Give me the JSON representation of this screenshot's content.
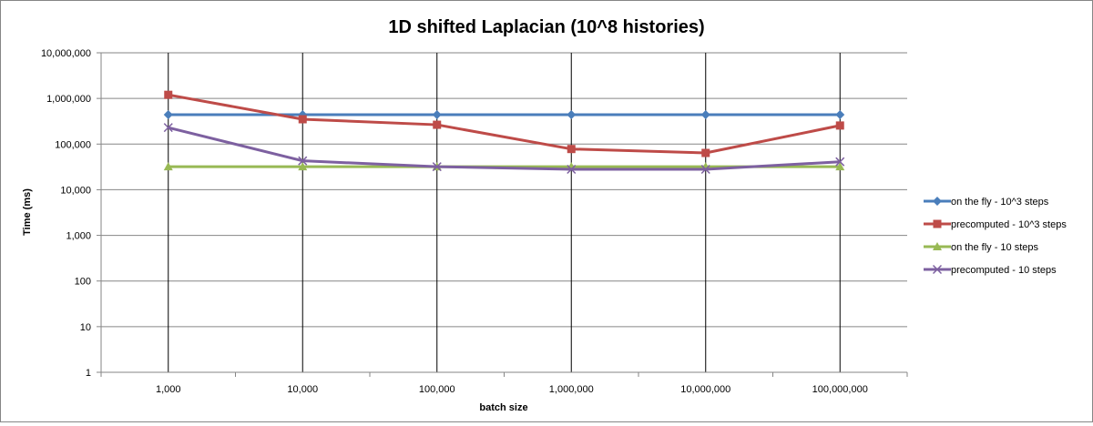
{
  "chart_data": {
    "type": "line",
    "title": "1D shifted Laplacian (10^8 histories)",
    "xlabel": "batch size",
    "ylabel": "Time (ms)",
    "y_scale": "log",
    "ylim": [
      1,
      10000000
    ],
    "grid": "vertical and horizontal major gridlines",
    "legend_position": "right",
    "categories": [
      "1,000",
      "10,000",
      "100,000",
      "1,000,000",
      "10,000,000",
      "100,000,000"
    ],
    "y_ticks": [
      {
        "value": 1,
        "label": "1"
      },
      {
        "value": 10,
        "label": "10"
      },
      {
        "value": 100,
        "label": "100"
      },
      {
        "value": 1000,
        "label": "1,000"
      },
      {
        "value": 10000,
        "label": "10,000"
      },
      {
        "value": 100000,
        "label": "100,000"
      },
      {
        "value": 1000000,
        "label": "1,000,000"
      },
      {
        "value": 10000000,
        "label": "10,000,000"
      }
    ],
    "series": [
      {
        "name": "on the fly - 10^3 steps",
        "color": "#4a7ebb",
        "marker": "diamond",
        "values": [
          440000,
          440000,
          440000,
          440000,
          440000,
          440000
        ]
      },
      {
        "name": "precomputed - 10^3 steps",
        "color": "#be4b48",
        "marker": "square",
        "values": [
          1200000,
          350000,
          265000,
          78000,
          64000,
          255000
        ]
      },
      {
        "name": "on the fly - 10 steps",
        "color": "#98b954",
        "marker": "triangle",
        "values": [
          32000,
          32000,
          32000,
          32000,
          32000,
          32000
        ]
      },
      {
        "name": "precomputed - 10 steps",
        "color": "#7d60a0",
        "marker": "x",
        "values": [
          230000,
          43000,
          32000,
          28000,
          28000,
          41000
        ]
      }
    ]
  }
}
